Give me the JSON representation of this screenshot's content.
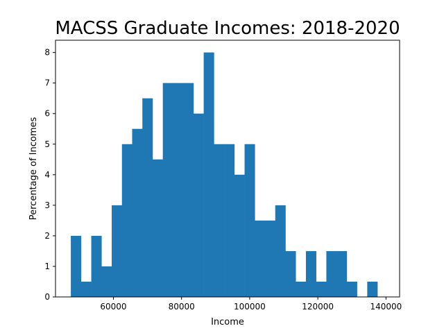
{
  "chart_data": {
    "type": "bar",
    "title": "MACSS Graduate Incomes: 2018-2020",
    "xlabel": "Income",
    "ylabel": "Percentage of Incomes",
    "xlim": [
      43000,
      144000
    ],
    "ylim": [
      0,
      8.4
    ],
    "bin_start": 47500,
    "bin_width": 3000,
    "values": [
      2,
      0.5,
      2,
      1,
      3,
      5,
      5.5,
      6.5,
      4.5,
      7,
      7,
      7,
      6,
      8,
      5,
      5,
      4,
      5,
      2.5,
      2.5,
      3,
      1.5,
      0.5,
      1.5,
      0.5,
      1.5,
      1.5,
      0.5,
      0,
      0.5
    ],
    "xticks": [
      60000,
      80000,
      100000,
      120000,
      140000
    ],
    "xtick_labels": [
      "60000",
      "80000",
      "100000",
      "120000",
      "140000"
    ],
    "yticks": [
      0,
      1,
      2,
      3,
      4,
      5,
      6,
      7,
      8
    ],
    "ytick_labels": [
      "0",
      "1",
      "2",
      "3",
      "4",
      "5",
      "6",
      "7",
      "8"
    ],
    "color": "#1f77b4",
    "grid": false
  }
}
